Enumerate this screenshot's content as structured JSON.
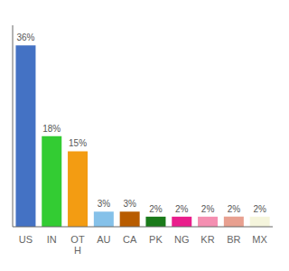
{
  "chart_data": {
    "type": "bar",
    "categories": [
      "US",
      "IN",
      "OT\nH",
      "AU",
      "CA",
      "PK",
      "NG",
      "KR",
      "BR",
      "MX"
    ],
    "values": [
      36,
      18,
      15,
      3,
      3,
      2,
      2,
      2,
      2,
      2
    ],
    "value_labels": [
      "36%",
      "18%",
      "15%",
      "3%",
      "3%",
      "2%",
      "2%",
      "2%",
      "2%",
      "2%"
    ],
    "colors": [
      "#4472c4",
      "#33cc33",
      "#f39c12",
      "#85c1e9",
      "#b85c00",
      "#1a7a1a",
      "#e91e8c",
      "#f48fb1",
      "#e8a090",
      "#f5f5dc"
    ],
    "ylim": [
      0,
      40
    ],
    "data_labels": true,
    "tick_labels": "x",
    "grid": false
  }
}
